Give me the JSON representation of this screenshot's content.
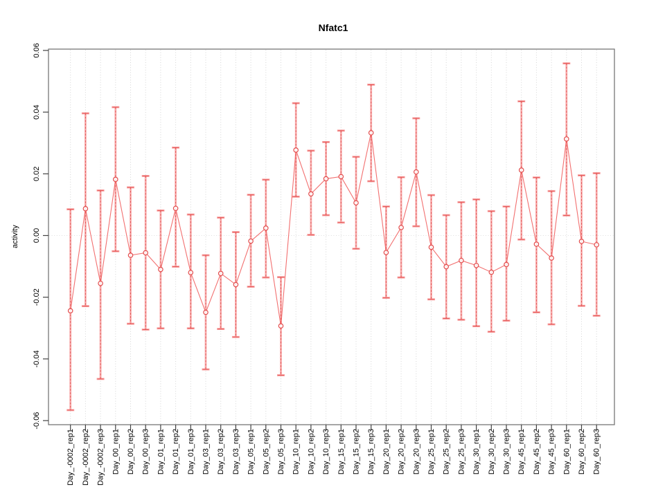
{
  "title": "Nfatc1",
  "chart_data": {
    "type": "line",
    "title": "Nfatc1",
    "xlabel": "",
    "ylabel": "activity",
    "ylim": [
      -0.06,
      0.06
    ],
    "grid": "vertical dotted gridline at every category; dotted horizontal line at y=0",
    "legend_position": "none",
    "marker": "open-circle",
    "error_bars": true,
    "y_ticks": [
      0.06,
      0.04,
      0.02,
      0.0,
      -0.02,
      -0.04,
      -0.06
    ],
    "y_tick_labels": [
      "0.06",
      "0.04",
      "0.02",
      "0.00",
      "-0.02",
      "-0.04",
      "-0.06"
    ],
    "categories": [
      "Day_-0002_rep1",
      "Day_-0002_rep2",
      "Day_-0002_rep3",
      "Day_00_rep1",
      "Day_00_rep2",
      "Day_00_rep3",
      "Day_01_rep1",
      "Day_01_rep2",
      "Day_01_rep3",
      "Day_03_rep1",
      "Day_03_rep2",
      "Day_03_rep3",
      "Day_05_rep1",
      "Day_05_rep2",
      "Day_05_rep3",
      "Day_10_rep1",
      "Day_10_rep2",
      "Day_10_rep3",
      "Day_15_rep1",
      "Day_15_rep2",
      "Day_15_rep3",
      "Day_20_rep1",
      "Day_20_rep2",
      "Day_20_rep3",
      "Day_25_rep1",
      "Day_25_rep2",
      "Day_25_rep3",
      "Day_30_rep1",
      "Day_30_rep2",
      "Day_30_rep3",
      "Day_45_rep1",
      "Day_45_rep2",
      "Day_45_rep3",
      "Day_60_rep1",
      "Day_60_rep2",
      "Day_60_rep3"
    ],
    "series": [
      {
        "name": "activity",
        "values": [
          -0.0244,
          0.0087,
          -0.0155,
          0.0182,
          -0.0064,
          -0.0056,
          -0.011,
          0.0088,
          -0.012,
          -0.0249,
          -0.0123,
          -0.0159,
          -0.0018,
          0.0024,
          -0.0293,
          0.0277,
          0.0135,
          0.0184,
          0.0191,
          0.0106,
          0.0333,
          -0.0055,
          0.0026,
          0.0206,
          -0.0038,
          -0.0101,
          -0.0081,
          -0.0097,
          -0.0119,
          -0.0094,
          0.0212,
          -0.0028,
          -0.0073,
          0.0313,
          -0.0019,
          -0.003
        ],
        "error_upper": [
          0.0085,
          0.0396,
          0.0146,
          0.0416,
          0.0156,
          0.0193,
          0.0081,
          0.0285,
          0.0068,
          -0.0064,
          0.0058,
          0.0011,
          0.0132,
          0.0181,
          -0.0135,
          0.0429,
          0.0275,
          0.0303,
          0.034,
          0.0255,
          0.0489,
          0.0094,
          0.0189,
          0.038,
          0.0131,
          0.0066,
          0.0108,
          0.0117,
          0.0079,
          0.0094,
          0.0435,
          0.0188,
          0.0144,
          0.0558,
          0.0195,
          0.0202
        ],
        "error_lower": [
          -0.0566,
          -0.0229,
          -0.0465,
          -0.0051,
          -0.0286,
          -0.0305,
          -0.0301,
          -0.0101,
          -0.0301,
          -0.0434,
          -0.0303,
          -0.0329,
          -0.0166,
          -0.0136,
          -0.0453,
          0.0126,
          0.0002,
          0.0066,
          0.0042,
          -0.0043,
          0.0176,
          -0.0202,
          -0.0136,
          0.003,
          -0.0207,
          -0.0269,
          -0.0273,
          -0.0294,
          -0.0312,
          -0.0276,
          -0.0013,
          -0.0249,
          -0.0288,
          0.0065,
          -0.0228,
          -0.026
        ]
      }
    ]
  },
  "colors": {
    "series_line": "#f15f5f",
    "point_stroke": "#e34c4c",
    "error_bar_thick": "#f78d8d",
    "error_bar_dash": "#e05050",
    "gridline": "#d4d4d4",
    "zero_line": "#dedede",
    "plot_border": "#777777",
    "tick": "#404040",
    "text": "#000000"
  }
}
